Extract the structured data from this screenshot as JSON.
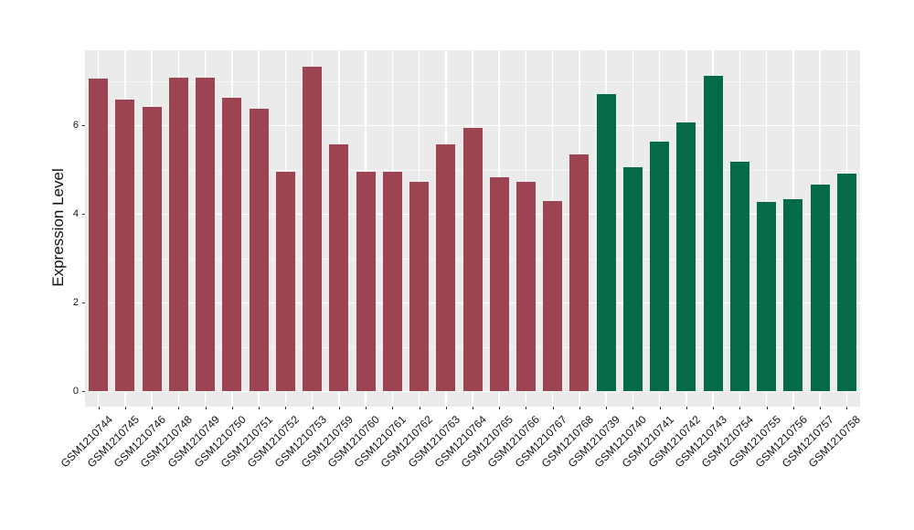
{
  "chart_data": {
    "type": "bar",
    "title": "",
    "xlabel": "",
    "ylabel": "Expression Level",
    "ylim": [
      0,
      7.7
    ],
    "yticks": [
      0,
      2,
      4,
      6
    ],
    "minor_gridlines": [
      1,
      3,
      5,
      7
    ],
    "grid": true,
    "legend_position": "none",
    "panel_background": "#EBEBEB",
    "grid_color": "#FFFFFF",
    "axis_text_color": "#111111",
    "group_colors": {
      "maroon": "#9C4452",
      "green": "#046A49"
    },
    "categories": [
      "GSM1210744",
      "GSM1210745",
      "GSM1210746",
      "GSM1210748",
      "GSM1210749",
      "GSM1210750",
      "GSM1210751",
      "GSM1210752",
      "GSM1210753",
      "GSM1210759",
      "GSM1210760",
      "GSM1210761",
      "GSM1210762",
      "GSM1210763",
      "GSM1210764",
      "GSM1210765",
      "GSM1210766",
      "GSM1210767",
      "GSM1210768",
      "GSM1210739",
      "GSM1210740",
      "GSM1210741",
      "GSM1210742",
      "GSM1210743",
      "GSM1210754",
      "GSM1210755",
      "GSM1210756",
      "GSM1210757",
      "GSM1210758"
    ],
    "values": [
      7.06,
      6.58,
      6.42,
      7.08,
      7.08,
      6.62,
      6.37,
      4.95,
      7.31,
      5.57,
      4.95,
      4.95,
      4.72,
      5.57,
      5.94,
      4.82,
      4.72,
      4.28,
      5.33,
      6.7,
      5.06,
      5.63,
      6.06,
      7.12,
      5.18,
      4.27,
      4.34,
      4.67,
      4.91
    ],
    "bar_groups": [
      "maroon",
      "maroon",
      "maroon",
      "maroon",
      "maroon",
      "maroon",
      "maroon",
      "maroon",
      "maroon",
      "maroon",
      "maroon",
      "maroon",
      "maroon",
      "maroon",
      "maroon",
      "maroon",
      "maroon",
      "maroon",
      "maroon",
      "green",
      "green",
      "green",
      "green",
      "green",
      "green",
      "green",
      "green",
      "green",
      "green"
    ]
  }
}
